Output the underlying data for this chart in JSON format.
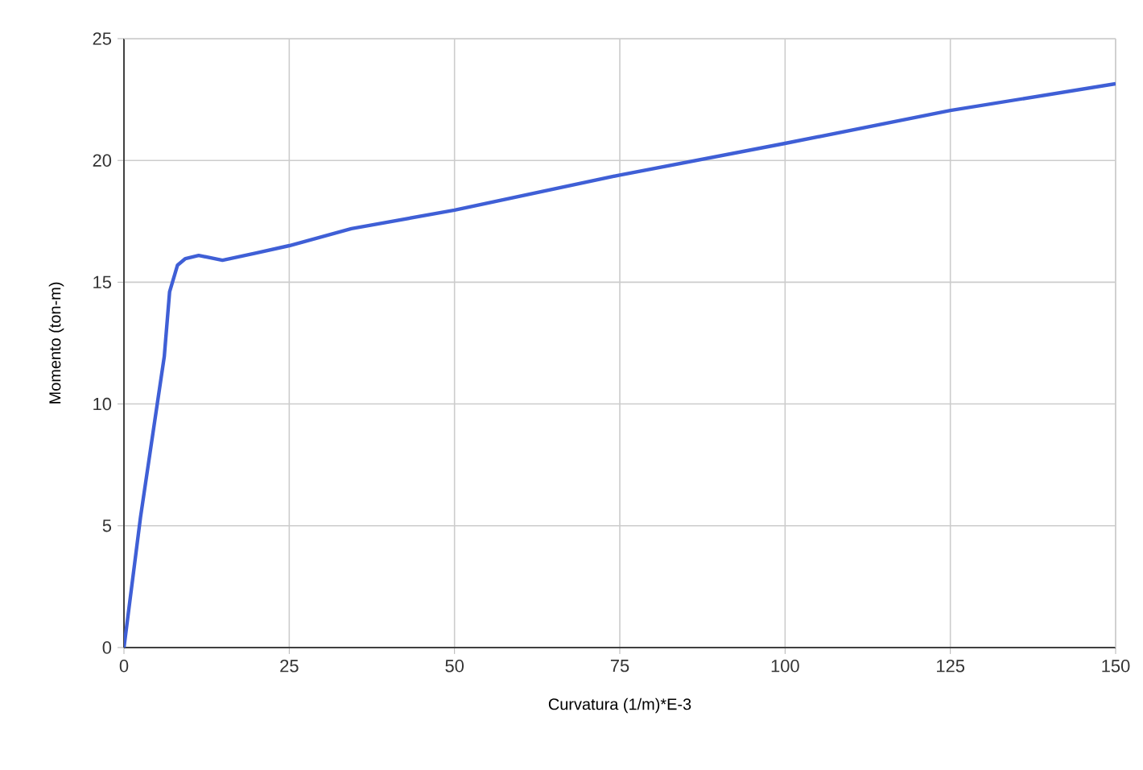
{
  "chart_data": {
    "type": "line",
    "xlabel": "Curvatura (1/m)*E-3",
    "ylabel": "Momento (ton-m)",
    "series": [
      {
        "color": "#3f5fd6",
        "x": [
          0,
          2.5,
          6.1,
          6.9,
          8.1,
          9.3,
          11.3,
          14.9,
          20,
          25,
          34.4,
          50,
          75,
          100,
          125,
          150
        ],
        "values": [
          0,
          5.35,
          11.96,
          14.6,
          15.7,
          15.97,
          16.1,
          15.9,
          16.2,
          16.5,
          17.2,
          17.96,
          19.4,
          20.7,
          22.05,
          23.15
        ]
      }
    ],
    "xlim": [
      0,
      150
    ],
    "ylim": [
      0,
      25
    ],
    "xticks": [
      0,
      25,
      50,
      75,
      100,
      125,
      150
    ],
    "yticks": [
      0,
      5,
      10,
      15,
      20,
      25
    ],
    "grid": true,
    "line_style": "solid",
    "marker": "none"
  }
}
